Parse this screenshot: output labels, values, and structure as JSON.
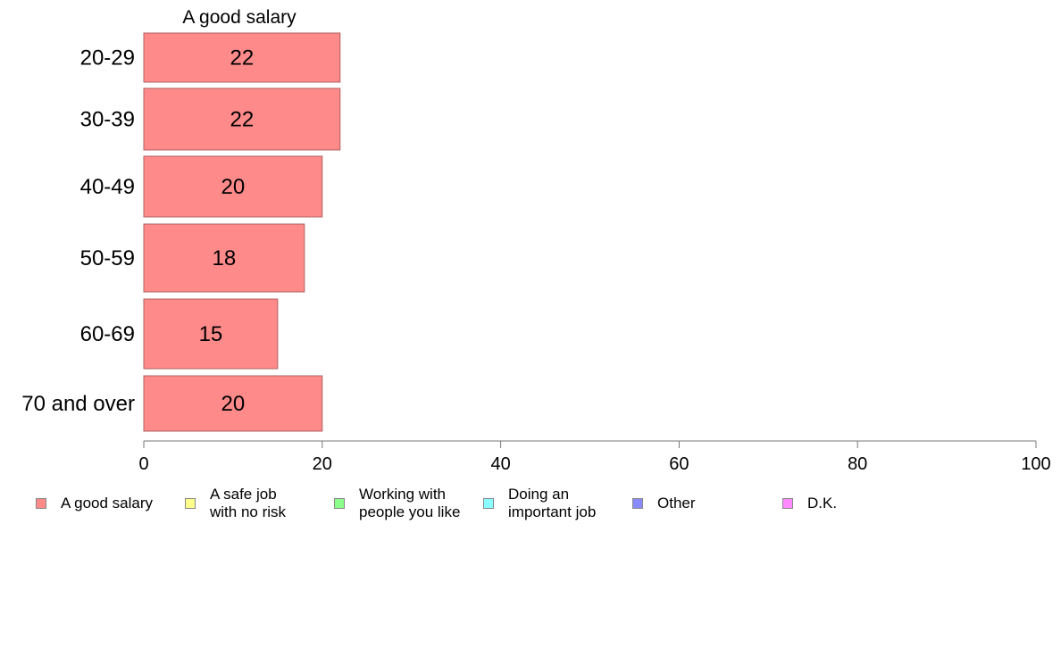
{
  "chart_data": {
    "type": "bar",
    "orientation": "horizontal",
    "title": "A good salary",
    "categories": [
      "20-29",
      "30-39",
      "40-49",
      "50-59",
      "60-69",
      "70 and over"
    ],
    "series": [
      {
        "name": "A good salary",
        "values": [
          22,
          22,
          20,
          18,
          15,
          20
        ],
        "labels": [
          "22",
          "22",
          "20",
          "18",
          "15",
          "20"
        ]
      }
    ],
    "xlim": [
      0,
      100
    ],
    "xticks": [
      0,
      20,
      40,
      60,
      80,
      100
    ],
    "xtick_labels": [
      "0",
      "20",
      "40",
      "60",
      "80",
      "100"
    ],
    "grid": false,
    "legend_position": "bottom",
    "legend": [
      {
        "label": "A good salary",
        "color": "#ff8a8a"
      },
      {
        "label": "A safe job\nwith no risk",
        "color": "#ffff8a"
      },
      {
        "label": "Working with\npeople you like",
        "color": "#8aff8a"
      },
      {
        "label": "Doing an\nimportant job",
        "color": "#8affff"
      },
      {
        "label": "Other",
        "color": "#8a8aff"
      },
      {
        "label": "D.K.",
        "color": "#ff8aff"
      }
    ],
    "bar_color": "#ff8a8a",
    "bar_edge_color": "#b06060"
  }
}
